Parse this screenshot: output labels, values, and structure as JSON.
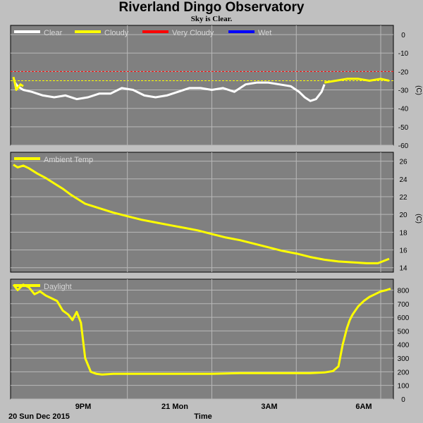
{
  "title": "Riverland Dingo Observatory",
  "subtitle": "Sky is Clear.",
  "date_label": "20 Sun Dec 2015",
  "xlabel": "Time",
  "x_ticks": [
    "9PM",
    "21 Mon",
    "3AM",
    "6AM"
  ],
  "colors": {
    "background": "#c0c0c0",
    "plot_bg": "#808080",
    "grid": "#b8b8b8",
    "clear": "#ffffff",
    "cloudy": "#ffff00",
    "very_cloudy": "#ff0000",
    "wet": "#0000ff",
    "ambient": "#ffff00",
    "daylight": "#ffff00"
  },
  "chart_data": [
    {
      "type": "line",
      "title": "",
      "ylabel": "(C)",
      "ylim": [
        -60,
        5
      ],
      "yticks": [
        0,
        -10,
        -20,
        -30,
        -40,
        -50,
        -60
      ],
      "x_unit": "hours",
      "xlim": [
        16.85,
        30.45
      ],
      "thresholds": [
        {
          "name": "Very Cloudy",
          "value": -20,
          "color": "#ff0000"
        },
        {
          "name": "Cloudy",
          "value": -25,
          "color": "#ffff00"
        }
      ],
      "legend": [
        "Clear",
        "Cloudy",
        "Very Cloudy",
        "Wet"
      ],
      "series": [
        {
          "name": "Clear",
          "color": "#ffffff",
          "x": [
            17.0,
            17.1,
            17.3,
            17.6,
            18.0,
            18.4,
            18.8,
            19.2,
            19.6,
            20.0,
            20.4,
            20.8,
            21.2,
            21.6,
            22.0,
            22.4,
            22.8,
            23.2,
            23.6,
            24.0,
            24.4,
            24.8,
            25.2,
            25.6,
            26.0,
            26.4,
            26.8,
            27.1,
            27.3,
            27.5,
            27.7,
            27.9,
            28.0
          ],
          "y": [
            -26,
            -28,
            -30,
            -31,
            -33,
            -34,
            -33,
            -35,
            -34,
            -32,
            -32,
            -29,
            -30,
            -33,
            -34,
            -33,
            -31,
            -29,
            -29,
            -30,
            -29,
            -31,
            -27,
            -26,
            -26,
            -27,
            -28,
            -31,
            -34,
            -36,
            -35,
            -31,
            -27
          ]
        },
        {
          "name": "Cloudy",
          "color": "#ffff00",
          "x": [
            16.95,
            17.0,
            17.05,
            17.1,
            17.2,
            17.3,
            28.0,
            28.4,
            28.8,
            29.2,
            29.6,
            30.0,
            30.3
          ],
          "y": [
            -23,
            -26,
            -30,
            -29,
            -27,
            -28,
            -26,
            -25,
            -24,
            -24,
            -25,
            -24,
            -25
          ]
        }
      ]
    },
    {
      "type": "line",
      "title": "",
      "ylabel": "(C)",
      "ylim": [
        13.5,
        27
      ],
      "yticks": [
        26,
        24,
        22,
        20,
        18,
        16,
        14
      ],
      "x_unit": "hours",
      "xlim": [
        16.85,
        30.45
      ],
      "legend": [
        "Ambient Temp"
      ],
      "series": [
        {
          "name": "Ambient Temp",
          "color": "#ffff00",
          "x": [
            16.95,
            17.1,
            17.3,
            17.5,
            17.8,
            18.1,
            18.4,
            18.7,
            19.0,
            19.5,
            20.0,
            20.5,
            21.0,
            21.5,
            22.0,
            22.5,
            23.0,
            23.5,
            24.0,
            24.5,
            25.0,
            25.5,
            26.0,
            26.5,
            27.0,
            27.5,
            28.0,
            28.5,
            29.0,
            29.5,
            29.9,
            30.3
          ],
          "y": [
            25.6,
            25.3,
            25.5,
            25.2,
            24.6,
            24.1,
            23.5,
            22.9,
            22.2,
            21.2,
            20.7,
            20.2,
            19.8,
            19.4,
            19.1,
            18.8,
            18.5,
            18.2,
            17.8,
            17.4,
            17.1,
            16.7,
            16.3,
            15.9,
            15.6,
            15.2,
            14.9,
            14.7,
            14.6,
            14.5,
            14.5,
            15.0
          ]
        }
      ]
    },
    {
      "type": "line",
      "title": "",
      "ylim": [
        0,
        880
      ],
      "yticks": [
        800,
        700,
        600,
        500,
        400,
        300,
        200,
        100,
        0
      ],
      "x_unit": "hours",
      "xlim": [
        16.85,
        30.45
      ],
      "legend": [
        "Daylight"
      ],
      "series": [
        {
          "name": "Daylight",
          "color": "#ffff00",
          "x": [
            16.95,
            17.1,
            17.3,
            17.5,
            17.7,
            17.9,
            18.1,
            18.3,
            18.5,
            18.7,
            18.9,
            19.05,
            19.2,
            19.35,
            19.5,
            19.7,
            19.9,
            20.1,
            20.5,
            21.0,
            22.0,
            23.0,
            24.0,
            25.0,
            26.0,
            27.0,
            27.5,
            28.0,
            28.3,
            28.5,
            28.65,
            28.8,
            28.9,
            29.0,
            29.2,
            29.4,
            29.6,
            29.8,
            30.0,
            30.2,
            30.35
          ],
          "y": [
            840,
            800,
            840,
            820,
            770,
            790,
            760,
            740,
            720,
            650,
            620,
            580,
            640,
            560,
            300,
            200,
            185,
            180,
            185,
            185,
            185,
            185,
            185,
            190,
            190,
            190,
            190,
            195,
            205,
            240,
            400,
            520,
            580,
            620,
            680,
            720,
            750,
            770,
            790,
            800,
            810
          ]
        }
      ]
    }
  ]
}
